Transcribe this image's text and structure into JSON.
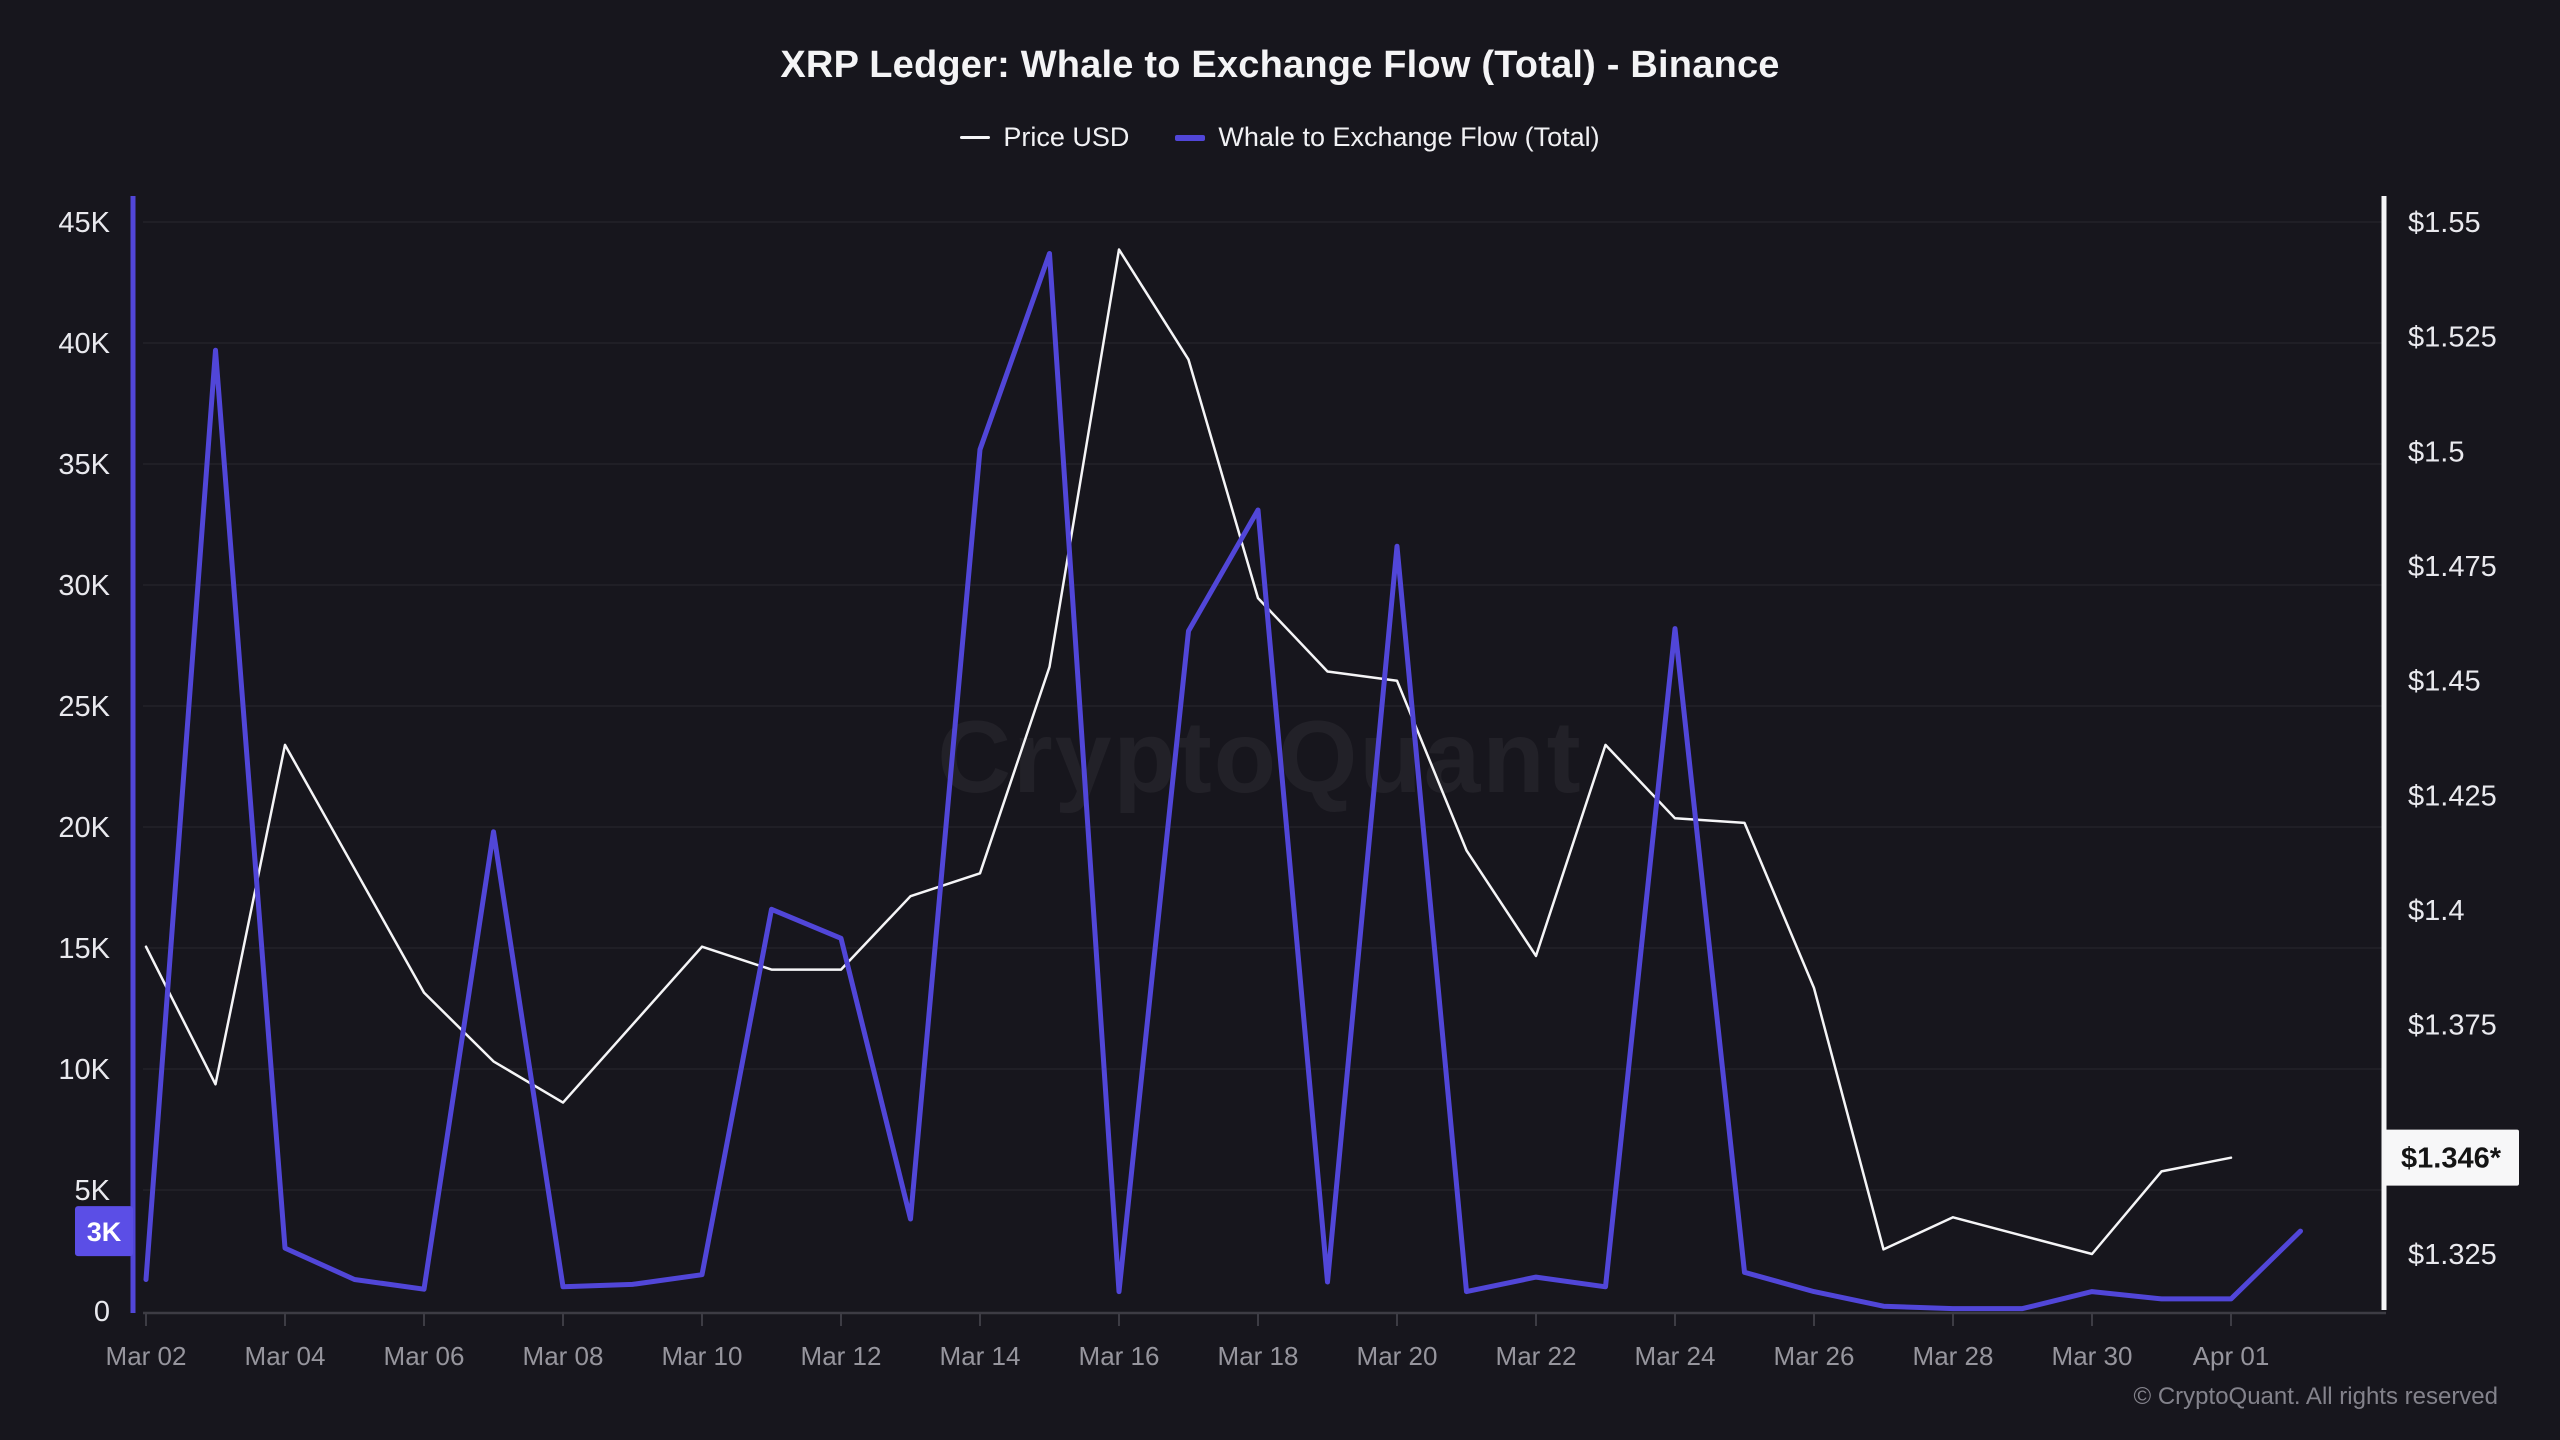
{
  "page": {
    "background": "#17161d"
  },
  "header": {
    "title": "XRP Ledger: Whale to Exchange Flow (Total) - Binance"
  },
  "legend": {
    "items": [
      {
        "label": "Price USD",
        "color": "#f5f5f7",
        "thickness": 3
      },
      {
        "label": "Whale to Exchange Flow (Total)",
        "color": "#5146d8",
        "thickness": 6
      }
    ]
  },
  "watermark": {
    "text": "CryptoQuant"
  },
  "footer": {
    "copyright": "© CryptoQuant. All rights reserved"
  },
  "chart_data": {
    "type": "line",
    "x": [
      "Mar 02",
      "Mar 03",
      "Mar 04",
      "Mar 05",
      "Mar 06",
      "Mar 07",
      "Mar 08",
      "Mar 09",
      "Mar 10",
      "Mar 11",
      "Mar 12",
      "Mar 13",
      "Mar 14",
      "Mar 15",
      "Mar 16",
      "Mar 17",
      "Mar 18",
      "Mar 19",
      "Mar 20",
      "Mar 21",
      "Mar 22",
      "Mar 23",
      "Mar 24",
      "Mar 25",
      "Mar 26",
      "Mar 27",
      "Mar 28",
      "Mar 29",
      "Mar 30",
      "Mar 31",
      "Apr 01",
      "Apr 02"
    ],
    "x_tick_labels": [
      "Mar 02",
      "Mar 04",
      "Mar 06",
      "Mar 08",
      "Mar 10",
      "Mar 12",
      "Mar 14",
      "Mar 16",
      "Mar 18",
      "Mar 20",
      "Mar 22",
      "Mar 24",
      "Mar 26",
      "Mar 28",
      "Mar 30",
      "Apr 01"
    ],
    "series": [
      {
        "name": "Price USD",
        "axis": "right",
        "color": "#f5f5f7",
        "stroke_width": 2.5,
        "values": [
          1.392,
          1.362,
          1.436,
          1.409,
          1.382,
          1.367,
          1.358,
          1.375,
          1.392,
          1.387,
          1.387,
          1.403,
          1.408,
          1.453,
          1.544,
          1.52,
          1.468,
          1.452,
          1.45,
          1.413,
          1.39,
          1.436,
          1.42,
          1.419,
          1.383,
          1.326,
          1.333,
          1.329,
          1.325,
          1.343,
          1.346,
          null
        ]
      },
      {
        "name": "Whale to Exchange Flow (Total)",
        "axis": "left",
        "color": "#5146d8",
        "stroke_width": 5,
        "values": [
          1300,
          39700,
          2600,
          1300,
          900,
          19800,
          1000,
          1100,
          1500,
          16600,
          15400,
          3800,
          35600,
          43700,
          800,
          28100,
          33100,
          1200,
          31600,
          800,
          1400,
          1000,
          28200,
          1600,
          800,
          200,
          100,
          100,
          800,
          500,
          500,
          3300
        ]
      }
    ],
    "left_axis": {
      "range": [
        0,
        45000
      ],
      "color": "#5146d8",
      "ticks": [
        {
          "label": "45K",
          "value": 45000
        },
        {
          "label": "40K",
          "value": 40000
        },
        {
          "label": "35K",
          "value": 35000
        },
        {
          "label": "30K",
          "value": 30000
        },
        {
          "label": "25K",
          "value": 25000
        },
        {
          "label": "20K",
          "value": 20000
        },
        {
          "label": "15K",
          "value": 15000
        },
        {
          "label": "10K",
          "value": 10000
        },
        {
          "label": "5K",
          "value": 5000
        },
        {
          "label": "0",
          "value": 0
        }
      ]
    },
    "right_axis": {
      "range": [
        1.325,
        1.55
      ],
      "color": "#f5f5f7",
      "ticks": [
        {
          "label": "$1.55",
          "value": 1.55
        },
        {
          "label": "$1.525",
          "value": 1.525
        },
        {
          "label": "$1.5",
          "value": 1.5
        },
        {
          "label": "$1.475",
          "value": 1.475
        },
        {
          "label": "$1.45",
          "value": 1.45
        },
        {
          "label": "$1.425",
          "value": 1.425
        },
        {
          "label": "$1.4",
          "value": 1.4
        },
        {
          "label": "$1.375",
          "value": 1.375
        },
        {
          "label": "$1.325",
          "value": 1.325
        }
      ]
    },
    "badges": {
      "left": {
        "label": "3K",
        "value": 3300,
        "bg": "#5b4ee6",
        "text_color": "#ffffff"
      },
      "right": {
        "label": "$1.346*",
        "value": 1.346,
        "bg": "#f7f7f8",
        "text_color": "#141414"
      }
    },
    "grid": "horizontal",
    "legend_position": "top"
  }
}
